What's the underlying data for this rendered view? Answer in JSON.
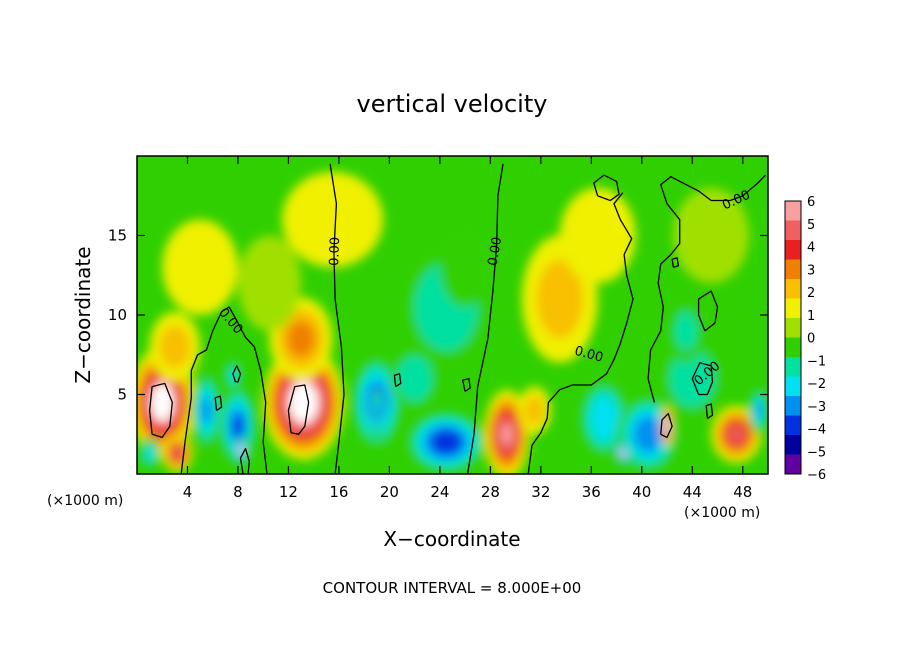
{
  "chart_data": {
    "type": "heatmap",
    "title": "vertical velocity",
    "xlabel": "X−coordinate",
    "ylabel": "Z−coordinate",
    "x_unit_left": "(×1000 m)",
    "x_unit_right": "(×1000 m)",
    "xlim": [
      0,
      50
    ],
    "ylim": [
      0,
      20
    ],
    "xticks": [
      "4",
      "8",
      "12",
      "16",
      "20",
      "24",
      "28",
      "32",
      "36",
      "40",
      "44",
      "48"
    ],
    "xtick_values": [
      4,
      8,
      12,
      16,
      20,
      24,
      28,
      32,
      36,
      40,
      44,
      48
    ],
    "yticks": [
      "5",
      "10",
      "15"
    ],
    "ytick_values": [
      5,
      10,
      15
    ],
    "footer": "CONTOUR INTERVAL = 8.000E+00",
    "contour_label": "0.00",
    "colorbar": {
      "labels": [
        "6",
        "5",
        "4",
        "3",
        "2",
        "1",
        "0",
        "−1",
        "−2",
        "−3",
        "−4",
        "−5",
        "−6"
      ],
      "colors": [
        "#f8a0a0",
        "#f06060",
        "#e82020",
        "#f08000",
        "#f8c000",
        "#f0f000",
        "#a0e000",
        "#30d000",
        "#00e0a0",
        "#00e0f0",
        "#0090f0",
        "#0030e0",
        "#0000a0",
        "#6000a0"
      ]
    },
    "blobs": [
      {
        "x": 2.0,
        "z": 4.5,
        "rx": 2.6,
        "rz": 3.5,
        "v": 7.0
      },
      {
        "x": 3.2,
        "z": 1.3,
        "rx": 1.2,
        "rz": 1.2,
        "v": 4.5
      },
      {
        "x": 5.5,
        "z": 4.0,
        "rx": 1.2,
        "rz": 2.5,
        "v": -4.0
      },
      {
        "x": 8.0,
        "z": 3.0,
        "rx": 1.5,
        "rz": 2.6,
        "v": -5.0
      },
      {
        "x": 8.3,
        "z": 1.5,
        "rx": 0.6,
        "rz": 0.9,
        "v": -7.0
      },
      {
        "x": 7.6,
        "z": 6.2,
        "rx": 0.7,
        "rz": 1.0,
        "v": -3.0
      },
      {
        "x": 1.0,
        "z": 1.3,
        "rx": 0.8,
        "rz": 1.0,
        "v": -3.0
      },
      {
        "x": 13.2,
        "z": 4.5,
        "rx": 3.2,
        "rz": 3.6,
        "v": 7.5
      },
      {
        "x": 13.0,
        "z": 8.5,
        "rx": 2.5,
        "rz": 2.6,
        "v": 2.2
      },
      {
        "x": 3.0,
        "z": 8.0,
        "rx": 2.0,
        "rz": 2.2,
        "v": 2.0
      },
      {
        "x": 10.5,
        "z": 12.0,
        "rx": 2.5,
        "rz": 3.0,
        "v": -0.8
      },
      {
        "x": 19.0,
        "z": 4.5,
        "rx": 2.0,
        "rz": 3.0,
        "v": -4.5
      },
      {
        "x": 19.0,
        "z": 3.8,
        "rx": 0.5,
        "rz": 1.5,
        "v": -4.5
      },
      {
        "x": 24.5,
        "z": 2.0,
        "rx": 3.2,
        "rz": 2.0,
        "v": -5.5
      },
      {
        "x": 24.5,
        "z": 10.5,
        "rx": 3.5,
        "rz": 3.8,
        "v": -2.3
      },
      {
        "x": 26.0,
        "z": 13.0,
        "rx": 2.0,
        "rz": 2.5,
        "v": -1.8
      },
      {
        "x": 22.0,
        "z": 6.0,
        "rx": 2.0,
        "rz": 2.0,
        "v": -2.5
      },
      {
        "x": 29.3,
        "z": 2.5,
        "rx": 1.8,
        "rz": 2.8,
        "v": 6.0
      },
      {
        "x": 31.5,
        "z": 4.0,
        "rx": 1.3,
        "rz": 1.5,
        "v": 2.0
      },
      {
        "x": 33.5,
        "z": 11.0,
        "rx": 3.0,
        "rz": 4.0,
        "v": 1.8
      },
      {
        "x": 37.0,
        "z": 3.5,
        "rx": 2.0,
        "rz": 2.5,
        "v": -3.5
      },
      {
        "x": 40.5,
        "z": 2.5,
        "rx": 2.5,
        "rz": 2.5,
        "v": -4.5
      },
      {
        "x": 42.0,
        "z": 3.0,
        "rx": 0.5,
        "rz": 1.3,
        "v": 6.5
      },
      {
        "x": 44.0,
        "z": 6.0,
        "rx": 2.5,
        "rz": 2.5,
        "v": -2.5
      },
      {
        "x": 43.5,
        "z": 9.0,
        "rx": 1.5,
        "rz": 2.0,
        "v": -2.0
      },
      {
        "x": 47.5,
        "z": 2.5,
        "rx": 2.0,
        "rz": 1.8,
        "v": 4.5
      },
      {
        "x": 49.3,
        "z": 4.0,
        "rx": 0.8,
        "rz": 1.5,
        "v": -4.0
      },
      {
        "x": 38.5,
        "z": 1.3,
        "rx": 0.6,
        "rz": 0.8,
        "v": -7.0
      },
      {
        "x": 45.5,
        "z": 15.0,
        "rx": 3.0,
        "rz": 3.0,
        "v": -0.6
      },
      {
        "x": 15.5,
        "z": 16.0,
        "rx": 4.0,
        "rz": 3.0,
        "v": 0.7
      },
      {
        "x": 36.5,
        "z": 15.0,
        "rx": 3.0,
        "rz": 3.0,
        "v": 1.0
      },
      {
        "x": 5.0,
        "z": 13.0,
        "rx": 3.0,
        "rz": 3.0,
        "v": 0.9
      }
    ],
    "contours": [
      {
        "points": [
          [
            1.2,
            2.5
          ],
          [
            1.0,
            4.0
          ],
          [
            1.2,
            5.5
          ],
          [
            2.2,
            5.7
          ],
          [
            2.8,
            4.5
          ],
          [
            2.6,
            3.0
          ],
          [
            2.0,
            2.3
          ],
          [
            1.2,
            2.5
          ]
        ]
      },
      {
        "points": [
          [
            12.2,
            2.6
          ],
          [
            12.0,
            4.0
          ],
          [
            12.5,
            5.5
          ],
          [
            13.3,
            5.6
          ],
          [
            13.6,
            4.5
          ],
          [
            13.3,
            3.0
          ],
          [
            12.8,
            2.5
          ],
          [
            12.2,
            2.6
          ]
        ]
      },
      {
        "points": [
          [
            3.5,
            0.0
          ],
          [
            3.8,
            2.0
          ],
          [
            4.3,
            4.8
          ],
          [
            4.3,
            6.5
          ],
          [
            4.8,
            7.5
          ],
          [
            5.5,
            7.8
          ],
          [
            6.0,
            9.0
          ],
          [
            6.7,
            10.2
          ],
          [
            7.3,
            10.5
          ],
          [
            7.8,
            9.8
          ],
          [
            8.6,
            8.6
          ],
          [
            9.3,
            8.0
          ],
          [
            9.8,
            6.5
          ],
          [
            10.2,
            4.5
          ],
          [
            10.0,
            2.0
          ],
          [
            10.3,
            0.0
          ]
        ]
      },
      {
        "points": [
          [
            15.7,
            0.0
          ],
          [
            16.0,
            2.0
          ],
          [
            16.4,
            5.0
          ],
          [
            16.2,
            8.0
          ],
          [
            15.7,
            11.0
          ],
          [
            15.6,
            14.0
          ],
          [
            15.8,
            17.0
          ],
          [
            15.3,
            19.5
          ]
        ]
      },
      {
        "points": [
          [
            26.2,
            0.0
          ],
          [
            26.7,
            2.5
          ],
          [
            27.0,
            5.5
          ],
          [
            27.8,
            8.5
          ],
          [
            28.2,
            11.5
          ],
          [
            28.5,
            14.5
          ],
          [
            28.6,
            17.5
          ],
          [
            29.0,
            19.5
          ]
        ]
      },
      {
        "points": [
          [
            31.0,
            0.0
          ],
          [
            31.3,
            1.8
          ],
          [
            32.0,
            2.6
          ],
          [
            32.5,
            3.5
          ],
          [
            32.6,
            4.5
          ],
          [
            33.5,
            5.3
          ],
          [
            34.5,
            5.6
          ],
          [
            36.0,
            5.6
          ],
          [
            37.2,
            6.3
          ],
          [
            37.8,
            7.2
          ],
          [
            38.3,
            8.2
          ],
          [
            38.8,
            9.5
          ],
          [
            39.3,
            11.0
          ],
          [
            38.8,
            12.5
          ],
          [
            38.6,
            13.8
          ],
          [
            39.2,
            14.8
          ],
          [
            38.3,
            16.0
          ],
          [
            37.8,
            17.0
          ],
          [
            38.5,
            17.7
          ]
        ]
      },
      {
        "points": [
          [
            36.5,
            17.5
          ],
          [
            36.2,
            18.3
          ],
          [
            37.0,
            18.8
          ],
          [
            38.0,
            18.4
          ],
          [
            38.2,
            17.6
          ],
          [
            37.5,
            17.2
          ],
          [
            36.5,
            17.5
          ]
        ]
      },
      {
        "points": [
          [
            41.0,
            4.5
          ],
          [
            40.5,
            6.0
          ],
          [
            40.7,
            7.8
          ],
          [
            41.5,
            9.0
          ],
          [
            41.7,
            10.5
          ],
          [
            41.3,
            12.0
          ],
          [
            41.5,
            13.2
          ],
          [
            42.3,
            13.8
          ],
          [
            43.0,
            14.5
          ],
          [
            43.0,
            16.0
          ],
          [
            42.0,
            17.0
          ],
          [
            41.5,
            18.2
          ],
          [
            42.3,
            18.7
          ],
          [
            43.5,
            18.2
          ],
          [
            44.5,
            17.8
          ],
          [
            45.5,
            17.2
          ],
          [
            47.0,
            17.2
          ],
          [
            48.0,
            17.5
          ],
          [
            49.2,
            18.3
          ],
          [
            49.8,
            18.8
          ]
        ]
      },
      {
        "points": [
          [
            45.0,
            9.0
          ],
          [
            44.5,
            10.0
          ],
          [
            44.5,
            11.0
          ],
          [
            45.5,
            11.5
          ],
          [
            46.0,
            10.5
          ],
          [
            45.8,
            9.5
          ],
          [
            45.0,
            9.0
          ]
        ]
      },
      {
        "points": [
          [
            44.5,
            5.0
          ],
          [
            44.0,
            6.0
          ],
          [
            44.6,
            7.0
          ],
          [
            45.5,
            6.8
          ],
          [
            45.6,
            5.8
          ],
          [
            45.2,
            5.0
          ],
          [
            44.5,
            5.0
          ]
        ]
      },
      {
        "points": [
          [
            41.5,
            2.5
          ],
          [
            41.6,
            3.4
          ],
          [
            42.1,
            3.8
          ],
          [
            42.4,
            3.0
          ],
          [
            42.0,
            2.3
          ],
          [
            41.5,
            2.5
          ]
        ]
      },
      {
        "points": [
          [
            8.4,
            0.0
          ],
          [
            8.2,
            1.0
          ],
          [
            8.6,
            1.6
          ],
          [
            8.9,
            0.8
          ],
          [
            8.8,
            0.0
          ]
        ]
      },
      {
        "points": [
          [
            7.8,
            5.8
          ],
          [
            7.6,
            6.3
          ],
          [
            7.9,
            6.8
          ],
          [
            8.2,
            6.3
          ],
          [
            8.0,
            5.8
          ],
          [
            7.8,
            5.8
          ]
        ]
      },
      {
        "points": [
          [
            42.5,
            13.0
          ],
          [
            42.4,
            13.5
          ],
          [
            42.8,
            13.6
          ],
          [
            42.9,
            13.1
          ],
          [
            42.5,
            13.0
          ]
        ]
      },
      {
        "points": [
          [
            20.5,
            5.5
          ],
          [
            20.4,
            6.2
          ],
          [
            20.8,
            6.3
          ],
          [
            20.9,
            5.7
          ],
          [
            20.5,
            5.5
          ]
        ]
      },
      {
        "points": [
          [
            26.0,
            5.2
          ],
          [
            25.8,
            5.9
          ],
          [
            26.3,
            6.0
          ],
          [
            26.4,
            5.4
          ],
          [
            26.0,
            5.2
          ]
        ]
      },
      {
        "points": [
          [
            45.2,
            3.5
          ],
          [
            45.1,
            4.3
          ],
          [
            45.5,
            4.4
          ],
          [
            45.6,
            3.7
          ],
          [
            45.2,
            3.5
          ]
        ]
      },
      {
        "points": [
          [
            6.3,
            4.0
          ],
          [
            6.2,
            4.8
          ],
          [
            6.6,
            4.9
          ],
          [
            6.7,
            4.2
          ],
          [
            6.3,
            4.0
          ]
        ]
      }
    ],
    "contour_labels": [
      {
        "x": 15.7,
        "z": 14.0,
        "angle": -88
      },
      {
        "x": 28.4,
        "z": 14.0,
        "angle": -80
      },
      {
        "x": 7.4,
        "z": 9.6,
        "angle": 50
      },
      {
        "x": 35.8,
        "z": 7.5,
        "angle": 15
      },
      {
        "x": 45.2,
        "z": 6.3,
        "angle": -40
      },
      {
        "x": 47.5,
        "z": 17.2,
        "angle": -25
      }
    ]
  }
}
